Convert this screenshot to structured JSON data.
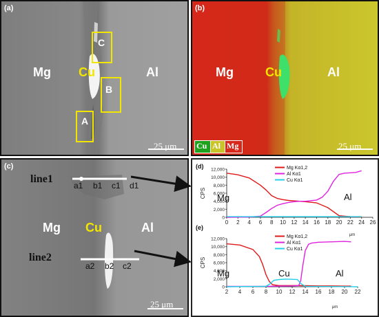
{
  "panel_a": {
    "tag": "(a)",
    "labels": {
      "mg": "Mg",
      "cu": "Cu",
      "al": "Al"
    },
    "boxes": [
      {
        "name": "C"
      },
      {
        "name": "B"
      },
      {
        "name": "A"
      }
    ],
    "scale": "25 μm"
  },
  "panel_b": {
    "tag": "(b)",
    "labels": {
      "mg": "Mg",
      "cu": "Cu",
      "al": "Al"
    },
    "legend": [
      {
        "label": "Cu",
        "color": "#1ea21e"
      },
      {
        "label": "Al",
        "color": "#c8c42a"
      },
      {
        "label": "Mg",
        "color": "#d8281c"
      }
    ],
    "scale": "25 μm"
  },
  "panel_c": {
    "tag": "(c)",
    "line1": "line1",
    "line1_points": [
      "a1",
      "b1",
      "c1",
      "d1"
    ],
    "line2": "line2",
    "line2_points": [
      "a2",
      "b2",
      "c2"
    ],
    "labels": {
      "mg": "Mg",
      "cu": "Cu",
      "al": "Al"
    },
    "scale": "25 μm"
  },
  "chart_data": [
    {
      "type": "line",
      "panel": "(d)",
      "ylabel": "CPS",
      "xlabel": "μm",
      "xlim": [
        0,
        26
      ],
      "ylim": [
        0,
        12000
      ],
      "xticks": [
        0,
        2,
        4,
        6,
        8,
        10,
        12,
        14,
        16,
        18,
        20,
        22,
        24,
        26
      ],
      "yticks": [
        0,
        2000,
        4000,
        6000,
        8000,
        10000,
        12000
      ],
      "ytick_labels": [
        "0",
        "2,000",
        "4,000",
        "6,000",
        "8,000",
        "10,000",
        "12,000"
      ],
      "annotations": [
        "Mg",
        "Al"
      ],
      "series": [
        {
          "name": "Mg Kα1,2",
          "color": "#e01818",
          "x": [
            0,
            2,
            4,
            6,
            7,
            8,
            9,
            10,
            11,
            12,
            13,
            14,
            16,
            18,
            20,
            22,
            24
          ],
          "y": [
            11000,
            10600,
            9800,
            8000,
            6800,
            5400,
            4700,
            4400,
            4200,
            4100,
            4000,
            3900,
            3600,
            2400,
            400,
            150,
            100
          ]
        },
        {
          "name": "Al Kα1",
          "color": "#e020e0",
          "x": [
            0,
            4,
            6,
            7,
            8,
            9,
            10,
            11,
            12,
            13,
            14,
            16,
            17,
            18,
            19,
            20,
            21,
            22,
            23,
            24
          ],
          "y": [
            0,
            50,
            300,
            1200,
            2200,
            3000,
            3400,
            3700,
            3900,
            4000,
            4000,
            4300,
            5000,
            6500,
            9000,
            10700,
            11000,
            11100,
            11200,
            11600
          ]
        },
        {
          "name": "Cu Kα1",
          "color": "#20d0e8",
          "x": [
            0,
            4,
            8,
            12,
            16,
            20,
            24
          ],
          "y": [
            150,
            150,
            150,
            150,
            150,
            150,
            150
          ]
        }
      ]
    },
    {
      "type": "line",
      "panel": "(e)",
      "ylabel": "CPS",
      "xlabel": "μm",
      "xlim": [
        2,
        22
      ],
      "ylim": [
        0,
        12000
      ],
      "xticks": [
        2,
        4,
        6,
        8,
        10,
        12,
        14,
        16,
        18,
        20,
        22
      ],
      "yticks": [
        0,
        2000,
        4000,
        6000,
        8000,
        10000,
        12000
      ],
      "ytick_labels": [
        "0",
        "2,000",
        "4,000",
        "6,000",
        "8,000",
        "10,000",
        "12,000"
      ],
      "annotations": [
        "Mg",
        "Cu",
        "Al"
      ],
      "series": [
        {
          "name": "Mg Kα1,2",
          "color": "#e01818",
          "x": [
            2,
            4,
            6,
            7,
            7.5,
            8,
            8.5,
            9,
            10,
            12,
            13,
            14,
            16,
            18,
            20,
            21
          ],
          "y": [
            10700,
            10400,
            9300,
            7500,
            5500,
            3000,
            1300,
            500,
            300,
            300,
            300,
            250,
            200,
            200,
            150,
            150
          ]
        },
        {
          "name": "Al Kα1",
          "color": "#e020e0",
          "x": [
            2,
            8,
            10,
            12,
            13,
            13.3,
            13.6,
            14,
            14.5,
            15,
            16,
            18,
            20,
            21
          ],
          "y": [
            100,
            100,
            150,
            200,
            300,
            1500,
            5000,
            9000,
            10600,
            10900,
            11100,
            11200,
            11300,
            11200
          ]
        },
        {
          "name": "Cu Kα1",
          "color": "#20d0e8",
          "x": [
            2,
            8,
            8.6,
            9.2,
            10,
            11,
            12,
            12.8,
            13.3,
            14,
            22
          ],
          "y": [
            0,
            100,
            700,
            1600,
            1800,
            1900,
            1850,
            1800,
            800,
            100,
            0
          ]
        }
      ]
    }
  ]
}
